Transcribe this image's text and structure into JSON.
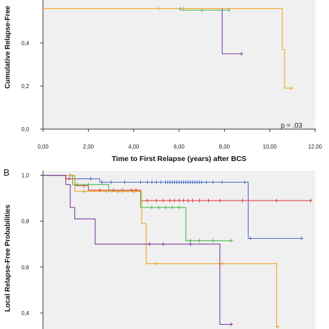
{
  "chart_data": [
    {
      "type": "line",
      "panel_label": "",
      "xlabel": "Time to First Relapse (years) after BCS",
      "ylabel": "Cumulative Relapse-Free",
      "x_ticks": [
        "0,00",
        "2,00",
        "4,00",
        "6,00",
        "8,00",
        "10,00",
        "12,00"
      ],
      "y_ticks": [
        "0,0",
        "0,2",
        "0,4"
      ],
      "xlim": [
        0,
        12
      ],
      "ylim": [
        0,
        0.6
      ],
      "annotation": "p = .03",
      "grid": false,
      "series": [
        {
          "color": "#f5a623",
          "steps": [
            [
              0,
              0.56
            ],
            [
              10.55,
              0.56
            ],
            [
              10.55,
              0.37
            ],
            [
              10.65,
              0.37
            ],
            [
              10.65,
              0.19
            ],
            [
              10.95,
              0.19
            ]
          ],
          "censors": [
            [
              5.1,
              0.56
            ],
            [
              6.2,
              0.56
            ],
            [
              10.95,
              0.19
            ]
          ]
        },
        {
          "color": "#5cb85c",
          "steps": [
            [
              6.0,
              0.56
            ],
            [
              6.05,
              0.56
            ],
            [
              6.05,
              0.553
            ],
            [
              8.2,
              0.553
            ]
          ],
          "censors": [
            [
              6.05,
              0.56
            ],
            [
              7.0,
              0.553
            ],
            [
              8.2,
              0.553
            ]
          ]
        },
        {
          "color": "#7b3f9e",
          "steps": [
            [
              7.9,
              0.56
            ],
            [
              7.9,
              0.35
            ],
            [
              8.75,
              0.35
            ]
          ],
          "censors": [
            [
              8.75,
              0.35
            ]
          ]
        }
      ]
    },
    {
      "type": "line",
      "panel_label": "B",
      "xlabel": "",
      "ylabel": "Local Relapse-Free Probabilities",
      "x_ticks": [],
      "y_ticks": [
        "0,4",
        "0,6",
        "0,8",
        "1,0"
      ],
      "xlim": [
        0,
        12
      ],
      "ylim": [
        0.33,
        1.02
      ],
      "annotation": "",
      "grid": false,
      "series": [
        {
          "color": "#4a6cc8",
          "steps": [
            [
              0,
              1.0
            ],
            [
              1.4,
              1.0
            ],
            [
              1.4,
              0.985
            ],
            [
              2.5,
              0.985
            ],
            [
              2.5,
              0.97
            ],
            [
              9.05,
              0.97
            ],
            [
              9.05,
              0.725
            ],
            [
              11.4,
              0.725
            ]
          ],
          "censors": [
            [
              1.2,
              1.0
            ],
            [
              2.1,
              0.985
            ],
            [
              2.6,
              0.97
            ],
            [
              3.0,
              0.97
            ],
            [
              3.6,
              0.97
            ],
            [
              4.3,
              0.97
            ],
            [
              4.6,
              0.97
            ],
            [
              4.8,
              0.97
            ],
            [
              5.0,
              0.97
            ],
            [
              5.2,
              0.97
            ],
            [
              5.4,
              0.97
            ],
            [
              5.5,
              0.97
            ],
            [
              5.6,
              0.97
            ],
            [
              5.7,
              0.97
            ],
            [
              5.8,
              0.97
            ],
            [
              5.9,
              0.97
            ],
            [
              6.0,
              0.97
            ],
            [
              6.1,
              0.97
            ],
            [
              6.2,
              0.97
            ],
            [
              6.3,
              0.97
            ],
            [
              6.4,
              0.97
            ],
            [
              6.5,
              0.97
            ],
            [
              6.6,
              0.97
            ],
            [
              6.7,
              0.97
            ],
            [
              6.8,
              0.97
            ],
            [
              6.9,
              0.97
            ],
            [
              7.0,
              0.97
            ],
            [
              7.2,
              0.97
            ],
            [
              7.5,
              0.97
            ],
            [
              7.9,
              0.97
            ],
            [
              8.9,
              0.97
            ],
            [
              9.15,
              0.725
            ],
            [
              11.4,
              0.725
            ]
          ]
        },
        {
          "color": "#e03030",
          "steps": [
            [
              0,
              1.0
            ],
            [
              1.0,
              1.0
            ],
            [
              1.0,
              0.985
            ],
            [
              1.4,
              0.985
            ],
            [
              1.4,
              0.955
            ],
            [
              2.0,
              0.955
            ],
            [
              2.0,
              0.935
            ],
            [
              4.3,
              0.935
            ],
            [
              4.3,
              0.89
            ],
            [
              11.8,
              0.89
            ]
          ],
          "censors": [
            [
              1.15,
              0.985
            ],
            [
              1.8,
              0.955
            ],
            [
              2.5,
              0.935
            ],
            [
              3.1,
              0.935
            ],
            [
              3.5,
              0.935
            ],
            [
              3.9,
              0.935
            ],
            [
              4.1,
              0.935
            ],
            [
              4.6,
              0.89
            ],
            [
              5.0,
              0.89
            ],
            [
              5.3,
              0.89
            ],
            [
              5.6,
              0.89
            ],
            [
              5.8,
              0.89
            ],
            [
              6.0,
              0.89
            ],
            [
              6.2,
              0.89
            ],
            [
              6.4,
              0.89
            ],
            [
              6.6,
              0.89
            ],
            [
              6.9,
              0.89
            ],
            [
              7.3,
              0.89
            ],
            [
              7.8,
              0.89
            ],
            [
              8.8,
              0.89
            ],
            [
              10.3,
              0.89
            ],
            [
              11.8,
              0.89
            ]
          ]
        },
        {
          "color": "#4cb84c",
          "steps": [
            [
              0,
              1.0
            ],
            [
              1.3,
              1.0
            ],
            [
              1.3,
              0.96
            ],
            [
              2.9,
              0.96
            ],
            [
              2.9,
              0.93
            ],
            [
              4.3,
              0.93
            ],
            [
              4.3,
              0.86
            ],
            [
              6.3,
              0.86
            ],
            [
              6.3,
              0.715
            ],
            [
              8.3,
              0.715
            ]
          ],
          "censors": [
            [
              1.5,
              0.96
            ],
            [
              2.0,
              0.96
            ],
            [
              3.3,
              0.93
            ],
            [
              4.0,
              0.93
            ],
            [
              4.8,
              0.86
            ],
            [
              5.1,
              0.86
            ],
            [
              5.4,
              0.86
            ],
            [
              5.7,
              0.86
            ],
            [
              6.0,
              0.86
            ],
            [
              6.5,
              0.715
            ],
            [
              6.9,
              0.715
            ],
            [
              7.5,
              0.715
            ],
            [
              8.3,
              0.715
            ]
          ]
        },
        {
          "color": "#f0a020",
          "steps": [
            [
              0,
              1.0
            ],
            [
              1.4,
              1.0
            ],
            [
              1.4,
              0.93
            ],
            [
              4.35,
              0.93
            ],
            [
              4.35,
              0.79
            ],
            [
              4.55,
              0.79
            ],
            [
              4.55,
              0.615
            ],
            [
              10.3,
              0.615
            ],
            [
              10.3,
              0.34
            ],
            [
              10.35,
              0.34
            ]
          ],
          "censors": [
            [
              1.8,
              0.93
            ],
            [
              2.8,
              0.93
            ],
            [
              3.5,
              0.93
            ],
            [
              5.0,
              0.615
            ],
            [
              7.9,
              0.615
            ],
            [
              10.35,
              0.34
            ]
          ]
        },
        {
          "color": "#7a3c9c",
          "steps": [
            [
              0,
              1.0
            ],
            [
              1.0,
              1.0
            ],
            [
              1.0,
              0.96
            ],
            [
              1.2,
              0.96
            ],
            [
              1.2,
              0.86
            ],
            [
              1.4,
              0.86
            ],
            [
              1.4,
              0.81
            ],
            [
              2.3,
              0.81
            ],
            [
              2.3,
              0.7
            ],
            [
              7.8,
              0.7
            ],
            [
              7.8,
              0.35
            ],
            [
              8.3,
              0.35
            ]
          ],
          "censors": [
            [
              4.7,
              0.7
            ],
            [
              5.3,
              0.7
            ],
            [
              6.5,
              0.7
            ],
            [
              8.3,
              0.35
            ]
          ]
        }
      ]
    }
  ]
}
